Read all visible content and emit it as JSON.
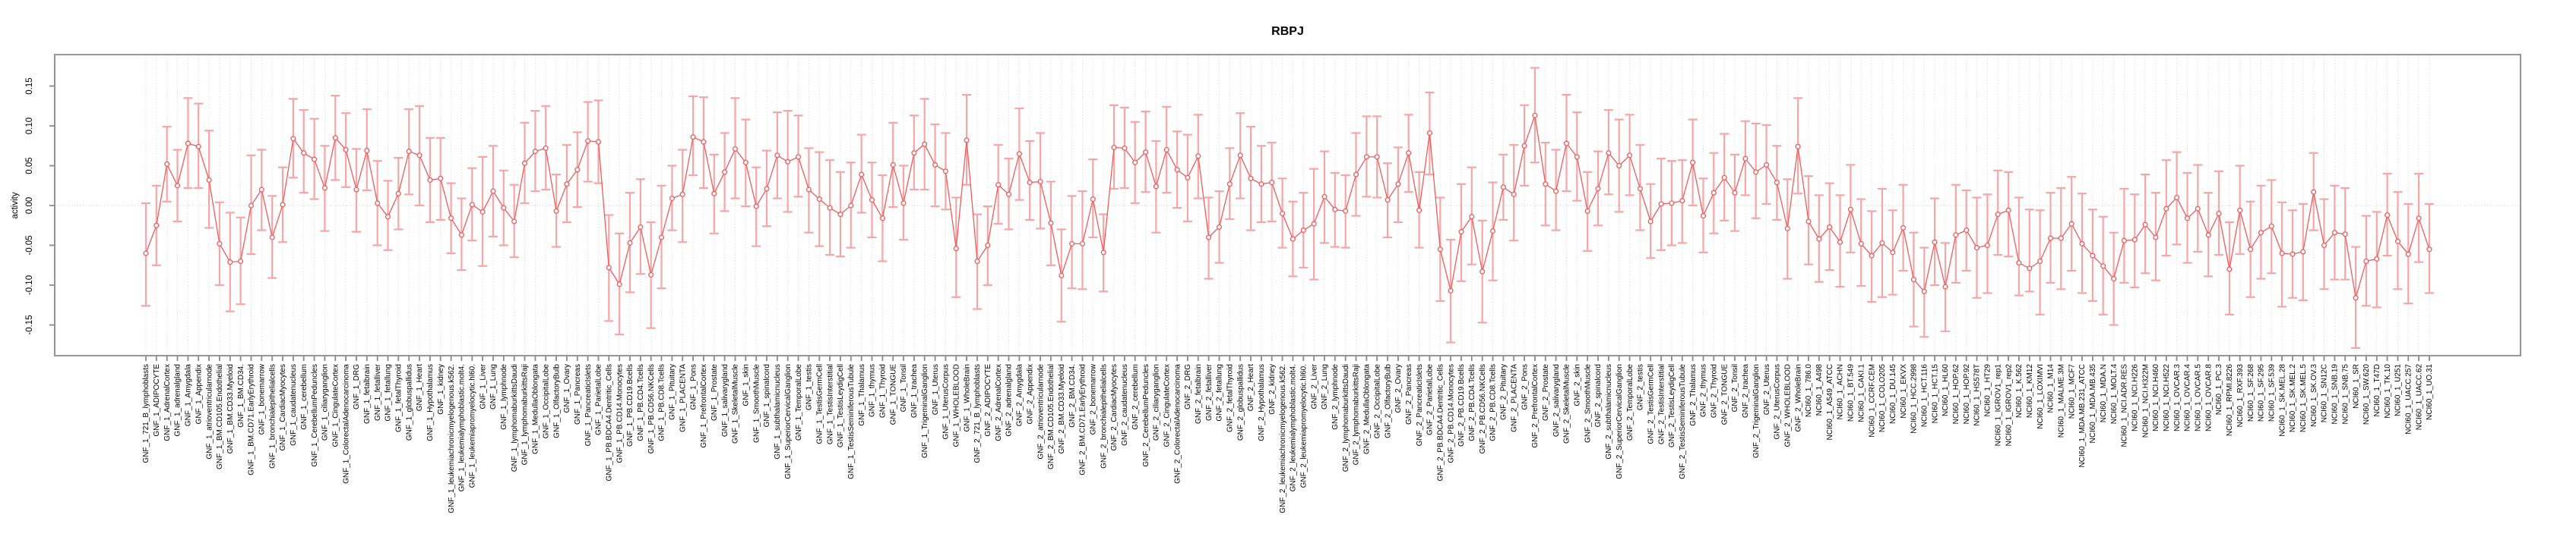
{
  "chart_data": {
    "type": "line",
    "title": "RBPJ",
    "ylabel": "activity",
    "xlabel": "",
    "legend": "none",
    "grid": "vertical dotted gridline per category; dotted horizontal line at 0",
    "ylim": [
      -0.19,
      0.19
    ],
    "yticks": {
      "labels": [
        "0.15",
        "0.10",
        "0.05",
        "0.00",
        "-0.05",
        "-0.10",
        "-0.15"
      ],
      "values": [
        0.15,
        0.1,
        0.05,
        0.0,
        -0.05,
        -0.1,
        -0.15
      ]
    },
    "marker": "open-circle with error bars (mean ± bounds)",
    "categories": [
      "GNF_1_721_B_lymphoblasts",
      "GNF_1_ADIPOCYTE",
      "GNF_1_AdrenalCortex",
      "GNF_1_adrenalgland",
      "GNF_1_Amygdala",
      "GNF_1_Appendix",
      "GNF_1_atrioventricularnode",
      "GNF_1_BM.CD105.Endothelial",
      "GNF_1_BM.CD33.Myeloid",
      "GNF_1_BM.CD34.",
      "GNF_1_BM.CD71.EarlyErythroid",
      "GNF_1_bonemarrow",
      "GNF_1_bronchialepithelialcells",
      "GNF_1_CardiacMyocytes",
      "GNF_1_caudatenucleus",
      "GNF_1_cerebellum",
      "GNF_1_CerebellumPeduncles",
      "GNF_1_ciliaryganglion",
      "GNF_1_CingulateCortex",
      "GNF_1_ColorectalAdenocarcinoma",
      "GNF_1_DRG",
      "GNF_1_fetalbrain",
      "GNF_1_fetalliver",
      "GNF_1_fetallung",
      "GNF_1_fetalThyroid",
      "GNF_1_globuspallidus",
      "GNF_1_Heart",
      "GNF_1_Hypothalamus",
      "GNF_1_kidney",
      "GNF_1_leukemiachronicmyelogenous.k562.",
      "GNF_1_leukemialymphoblastic.molt4.",
      "GNF_1_leukemiapromyelocytic.hl60.",
      "GNF_1_Liver",
      "GNF_1_Lung",
      "GNF_1_lymphnode",
      "GNF_1_lymphomaburkittsDaudi",
      "GNF_1_lymphomaburkittsRaji",
      "GNF_1_MedullaOblongata",
      "GNF_1_OccipitalLobe",
      "GNF_1_OlfactoryBulb",
      "GNF_1_Ovary",
      "GNF_1_Pancreas",
      "GNF_1_PancreaticIslets",
      "GNF_1_ParietalLobe",
      "GNF_1_PB.BDCA4.Dentritic_Cells",
      "GNF_1_PB.CD14.Monocytes",
      "GNF_1_PB.CD19.Bcells",
      "GNF_1_PB.CD4.Tcells",
      "GNF_1_PB.CD56.NKCells",
      "GNF_1_PB.CD8.Tcells",
      "GNF_1_Pituitary",
      "GNF_1_PLACENTA",
      "GNF_1_Pons",
      "GNF_1_PrefrontalCortex",
      "GNF_1_Prostate",
      "GNF_1_salivarygland",
      "GNF_1_SkeletalMuscle",
      "GNF_1_skin",
      "GNF_1_SmoothMuscle",
      "GNF_1_spinalcord",
      "GNF_1_subthalamicnucleus",
      "GNF_1_SuperiorCervicalGanglion",
      "GNF_1_TemporalLobe",
      "GNF_1_testis",
      "GNF_1_TestisGermCell",
      "GNF_1_TestisInterstitial",
      "GNF_1_TestisLeydigCell",
      "GNF_1_TestisSeminiferousTubule",
      "GNF_1_Thalamus",
      "GNF_1_thymus",
      "GNF_1_Thyroid",
      "GNF_1_TONGUE",
      "GNF_1_Tonsil",
      "GNF_1_trachea",
      "GNF_1_TrigeminalGanglion",
      "GNF_1_Uterus",
      "GNF_1_UterusCorpus",
      "GNF_1_WHOLEBLOOD",
      "GNF_1_WholeBrain",
      "GNF_2_721_B_lymphoblasts",
      "GNF_2_ADIPOCYTE",
      "GNF_2_AdrenalCortex",
      "GNF_2_adrenalgland",
      "GNF_2_Amygdala",
      "GNF_2_Appendix",
      "GNF_2_atrioventricularnode",
      "GNF_2_BM.CD105.Endothelial",
      "GNF_2_BM.CD33.Myeloid",
      "GNF_2_BM.CD34.",
      "GNF_2_BM.CD71.EarlyErythroid",
      "GNF_2_bonemarrow",
      "GNF_2_bronchialepithelialcells",
      "GNF_2_CardiacMyocytes",
      "GNF_2_caudatenucleus",
      "GNF_2_cerebellum",
      "GNF_2_CerebellumPeduncles",
      "GNF_2_ciliaryganglion",
      "GNF_2_CingulateCortex",
      "GNF_2_ColorectalAdenocarcinoma",
      "GNF_2_DRG",
      "GNF_2_fetalbrain",
      "GNF_2_fetalliver",
      "GNF_2_fetallung",
      "GNF_2_fetalThyroid",
      "GNF_2_globuspallidus",
      "GNF_2_Heart",
      "GNF_2_Hypothalamus",
      "GNF_2_kidney",
      "GNF_2_leukemiachronicmyelogenous.k562.",
      "GNF_2_leukemialymphoblastic.molt4.",
      "GNF_2_leukemiapromyelocytic.hl60.",
      "GNF_2_Liver",
      "GNF_2_Lung",
      "GNF_2_lymphnode",
      "GNF_2_lymphomaburkittsDaudi",
      "GNF_2_lymphomaburkittsRaji",
      "GNF_2_MedullaOblongata",
      "GNF_2_OccipitalLobe",
      "GNF_2_OlfactoryBulb",
      "GNF_2_Ovary",
      "GNF_2_Pancreas",
      "GNF_2_PancreaticIslets",
      "GNF_2_ParietalLobe",
      "GNF_2_PB.BDCA4.Dentritic_Cells",
      "GNF_2_PB.CD14.Monocytes",
      "GNF_2_PB.CD19.Bcells",
      "GNF_2_PB.CD4.Tcells",
      "GNF_2_PB.CD56.NKCells",
      "GNF_2_PB.CD8.Tcells",
      "GNF_2_Pituitary",
      "GNF_2_PLACENTA",
      "GNF_2_Pons",
      "GNF_2_PrefrontalCortex",
      "GNF_2_Prostate",
      "GNF_2_salivarygland",
      "GNF_2_SkeletalMuscle",
      "GNF_2_skin",
      "GNF_2_SmoothMuscle",
      "GNF_2_spinalcord",
      "GNF_2_subthalamicnucleus",
      "GNF_2_SuperiorCervicalGanglion",
      "GNF_2_TemporalLobe",
      "GNF_2_testis",
      "GNF_2_TestisGermCell",
      "GNF_2_TestisInterstitial",
      "GNF_2_TestisLeydigCell",
      "GNF_2_TestisSeminiferousTubule",
      "GNF_2_Thalamus",
      "GNF_2_thymus",
      "GNF_2_Thyroid",
      "GNF_2_TONGUE",
      "GNF_2_Tonsil",
      "GNF_2_trachea",
      "GNF_2_TrigeminalGanglion",
      "GNF_2_Uterus",
      "GNF_2_UterusCorpus",
      "GNF_2_WHOLEBLOOD",
      "GNF_2_WholeBrain",
      "NCI60_1_786.0",
      "NCI60_1_A498",
      "NCI60_1_A549_ATCC",
      "NCI60_1_ACHN",
      "NCI60_1_BT.549",
      "NCI60_1_CAKI.1",
      "NCI60_1_CCRF.CEM",
      "NCI60_1_COLO205",
      "NCI60_1_DU.145",
      "NCI60_1_EKVX",
      "NCI60_1_HCC.2998",
      "NCI60_1_HCT.116",
      "NCI60_1_HCT.15",
      "NCI60_1_HL60",
      "NCI60_1_HOP.62",
      "NCI60_1_HOP.92",
      "NCI60_1_HS578T",
      "NCI60_1_HT29",
      "NCI60_1_IGROV1_rep1",
      "NCI60_1_IGROV1_rep2",
      "NCI60_1_K.562",
      "NCI60_1_KM12",
      "NCI60_1_LOXIMVI",
      "NCI60_1_M14",
      "NCI60_1_MALME.3M",
      "NCI60_1_MCF7",
      "NCI60_1_MDA.MB.231_ATCC",
      "NCI60_1_MDA.MB.435",
      "NCI60_1_MDA.N",
      "NCI60_1_MOLT.4",
      "NCI60_1_NCI.ADR.RES",
      "NCI60_1_NCI.H226",
      "NCI60_1_NCI.H322M",
      "NCI60_1_NCI.H460",
      "NCI60_1_NCI.H522",
      "NCI60_1_OVCAR.3",
      "NCI60_1_OVCAR.4",
      "NCI60_1_OVCAR.5",
      "NCI60_1_OVCAR.8",
      "NCI60_1_PC.3",
      "NCI60_1_RPMI.8226",
      "NCI60_1_RXF.393",
      "NCI60_1_SF.268",
      "NCI60_1_SF.295",
      "NCI60_1_SF.539",
      "NCI60_1_SK.MEL.28",
      "NCI60_1_SK.MEL.2",
      "NCI60_1_SK.MEL.5",
      "NCI60_1_SK.OV.3",
      "NCI60_1_SN12C",
      "NCI60_1_SNB.19",
      "NCI60_1_SNB.75",
      "NCI60_1_SR",
      "NCI60_1_SW.620",
      "NCI60_1_T47D",
      "NCI60_1_TK.10",
      "NCI60_1_U251",
      "NCI60_1_UACC.257",
      "NCI60_1_UACC.62",
      "NCI60_1_UO.31"
    ],
    "values": [
      -0.06,
      -0.025,
      0.052,
      0.025,
      0.078,
      0.074,
      0.032,
      -0.048,
      -0.071,
      -0.07,
      0.0,
      0.02,
      -0.04,
      0.001,
      0.084,
      0.066,
      0.058,
      0.022,
      0.085,
      0.07,
      0.02,
      0.069,
      0.003,
      -0.014,
      0.015,
      0.068,
      0.063,
      0.032,
      0.034,
      -0.016,
      -0.037,
      0.001,
      -0.008,
      0.018,
      -0.003,
      -0.02,
      0.053,
      0.068,
      0.072,
      -0.007,
      0.027,
      0.045,
      0.081,
      0.08,
      -0.078,
      -0.099,
      -0.047,
      -0.027,
      -0.087,
      -0.04,
      0.009,
      0.014,
      0.086,
      0.08,
      0.015,
      0.042,
      0.071,
      0.054,
      -0.001,
      0.021,
      0.063,
      0.055,
      0.061,
      0.02,
      0.008,
      -0.003,
      -0.011,
      0.0,
      0.039,
      0.007,
      -0.016,
      0.051,
      0.003,
      0.066,
      0.077,
      0.051,
      0.043,
      -0.054,
      0.082,
      -0.07,
      -0.05,
      0.026,
      0.014,
      0.065,
      0.029,
      0.03,
      -0.022,
      -0.088,
      -0.048,
      -0.048,
      0.008,
      -0.059,
      0.073,
      0.072,
      0.054,
      0.067,
      0.024,
      0.07,
      0.045,
      0.035,
      0.062,
      -0.04,
      -0.027,
      0.027,
      0.063,
      0.034,
      0.027,
      0.029,
      -0.01,
      -0.042,
      -0.031,
      -0.023,
      0.011,
      -0.005,
      -0.007,
      0.039,
      0.061,
      0.061,
      0.007,
      0.027,
      0.066,
      -0.006,
      0.091,
      -0.055,
      -0.107,
      -0.033,
      -0.014,
      -0.083,
      -0.032,
      0.023,
      0.014,
      0.075,
      0.113,
      0.027,
      0.018,
      0.078,
      0.061,
      -0.007,
      0.021,
      0.066,
      0.05,
      0.063,
      0.021,
      -0.02,
      0.002,
      0.003,
      0.006,
      0.054,
      -0.013,
      0.016,
      0.035,
      0.016,
      0.059,
      0.042,
      0.051,
      0.029,
      -0.029,
      0.074,
      -0.02,
      -0.042,
      -0.027,
      -0.046,
      -0.005,
      -0.048,
      -0.063,
      -0.047,
      -0.059,
      -0.028,
      -0.093,
      -0.108,
      -0.046,
      -0.102,
      -0.037,
      -0.031,
      -0.053,
      -0.05,
      -0.011,
      -0.006,
      -0.072,
      -0.079,
      -0.07,
      -0.041,
      -0.041,
      -0.023,
      -0.048,
      -0.063,
      -0.076,
      -0.092,
      -0.044,
      -0.043,
      -0.024,
      -0.04,
      -0.004,
      0.01,
      -0.016,
      -0.004,
      -0.037,
      -0.01,
      -0.08,
      -0.006,
      -0.055,
      -0.034,
      -0.026,
      -0.06,
      -0.061,
      -0.058,
      0.017,
      -0.05,
      -0.034,
      -0.036,
      -0.116,
      -0.07,
      -0.067,
      -0.012,
      -0.045,
      -0.061,
      -0.016,
      -0.055
    ],
    "err_low": [
      -0.126,
      -0.075,
      0.005,
      -0.02,
      0.022,
      0.022,
      -0.028,
      -0.1,
      -0.133,
      -0.124,
      -0.061,
      -0.031,
      -0.091,
      -0.046,
      0.035,
      0.016,
      0.008,
      -0.032,
      0.032,
      0.023,
      -0.033,
      0.019,
      -0.05,
      -0.056,
      -0.03,
      0.014,
      0.0,
      -0.021,
      -0.018,
      -0.06,
      -0.081,
      -0.044,
      -0.076,
      -0.039,
      -0.05,
      -0.065,
      0.003,
      0.018,
      0.02,
      -0.052,
      -0.021,
      -0.002,
      0.03,
      0.028,
      -0.145,
      -0.162,
      -0.109,
      -0.086,
      -0.154,
      -0.104,
      -0.031,
      -0.046,
      0.038,
      0.022,
      -0.035,
      -0.007,
      0.009,
      -0.001,
      -0.051,
      -0.026,
      0.009,
      -0.008,
      0.011,
      -0.034,
      -0.051,
      -0.062,
      -0.064,
      -0.053,
      -0.009,
      -0.04,
      -0.07,
      -0.002,
      -0.043,
      0.02,
      0.02,
      -0.001,
      -0.005,
      -0.115,
      0.026,
      -0.13,
      -0.1,
      -0.023,
      -0.03,
      0.007,
      -0.018,
      -0.029,
      -0.075,
      -0.146,
      -0.104,
      -0.105,
      -0.04,
      -0.108,
      0.021,
      0.022,
      0.003,
      0.017,
      -0.034,
      0.016,
      -0.003,
      -0.02,
      0.009,
      -0.092,
      -0.072,
      -0.017,
      0.009,
      -0.031,
      -0.021,
      -0.02,
      -0.053,
      -0.089,
      -0.078,
      -0.093,
      -0.047,
      -0.052,
      -0.053,
      -0.013,
      0.011,
      0.01,
      -0.04,
      -0.021,
      0.017,
      -0.053,
      0.039,
      -0.12,
      -0.172,
      -0.095,
      -0.074,
      -0.147,
      -0.094,
      -0.018,
      -0.044,
      0.025,
      0.054,
      -0.025,
      -0.031,
      0.018,
      0.006,
      -0.057,
      -0.025,
      0.014,
      -0.008,
      0.013,
      -0.031,
      -0.066,
      -0.056,
      -0.05,
      -0.047,
      0.0,
      -0.059,
      -0.035,
      -0.019,
      -0.032,
      0.013,
      -0.016,
      0.002,
      -0.018,
      -0.092,
      0.015,
      -0.074,
      -0.096,
      -0.081,
      -0.102,
      -0.059,
      -0.101,
      -0.121,
      -0.115,
      -0.112,
      -0.082,
      -0.152,
      -0.165,
      -0.1,
      -0.158,
      -0.097,
      -0.082,
      -0.116,
      -0.11,
      -0.062,
      -0.064,
      -0.113,
      -0.108,
      -0.137,
      -0.097,
      -0.105,
      -0.082,
      -0.11,
      -0.12,
      -0.137,
      -0.15,
      -0.097,
      -0.103,
      -0.085,
      -0.094,
      -0.063,
      -0.049,
      -0.072,
      -0.058,
      -0.089,
      -0.062,
      -0.137,
      -0.061,
      -0.115,
      -0.092,
      -0.085,
      -0.127,
      -0.116,
      -0.119,
      -0.031,
      -0.105,
      -0.093,
      -0.093,
      -0.179,
      -0.126,
      -0.128,
      -0.063,
      -0.105,
      -0.123,
      -0.071,
      -0.11
    ],
    "err_high": [
      0.003,
      0.025,
      0.099,
      0.07,
      0.135,
      0.128,
      0.094,
      0.004,
      -0.009,
      -0.015,
      0.063,
      0.07,
      0.012,
      0.048,
      0.134,
      0.12,
      0.109,
      0.075,
      0.138,
      0.116,
      0.071,
      0.121,
      0.056,
      0.031,
      0.06,
      0.121,
      0.125,
      0.085,
      0.085,
      0.028,
      0.009,
      0.047,
      0.061,
      0.075,
      0.044,
      0.026,
      0.104,
      0.119,
      0.125,
      0.039,
      0.076,
      0.092,
      0.13,
      0.132,
      -0.012,
      -0.035,
      0.016,
      0.033,
      -0.021,
      0.025,
      0.05,
      0.07,
      0.137,
      0.136,
      0.064,
      0.091,
      0.135,
      0.108,
      0.048,
      0.069,
      0.117,
      0.119,
      0.113,
      0.072,
      0.067,
      0.057,
      0.042,
      0.054,
      0.089,
      0.054,
      0.038,
      0.104,
      0.05,
      0.113,
      0.134,
      0.102,
      0.091,
      0.01,
      0.139,
      -0.011,
      -0.001,
      0.076,
      0.059,
      0.122,
      0.081,
      0.091,
      0.03,
      -0.03,
      0.012,
      0.018,
      0.058,
      -0.011,
      0.126,
      0.123,
      0.105,
      0.118,
      0.081,
      0.124,
      0.093,
      0.089,
      0.114,
      0.01,
      0.018,
      0.072,
      0.116,
      0.099,
      0.075,
      0.079,
      0.034,
      0.005,
      0.016,
      0.046,
      0.068,
      0.041,
      0.038,
      0.091,
      0.112,
      0.112,
      0.053,
      0.073,
      0.114,
      0.042,
      0.142,
      0.01,
      -0.043,
      0.027,
      0.048,
      -0.019,
      0.029,
      0.064,
      0.076,
      0.126,
      0.173,
      0.079,
      0.07,
      0.139,
      0.117,
      0.042,
      0.068,
      0.12,
      0.108,
      0.114,
      0.076,
      0.027,
      0.059,
      0.056,
      0.057,
      0.108,
      0.034,
      0.066,
      0.09,
      0.064,
      0.106,
      0.103,
      0.101,
      0.075,
      0.033,
      0.135,
      0.037,
      0.013,
      0.028,
      0.013,
      0.051,
      0.008,
      -0.007,
      0.021,
      -0.006,
      0.026,
      -0.034,
      -0.053,
      0.009,
      -0.047,
      0.026,
      0.019,
      0.01,
      0.014,
      0.044,
      0.042,
      0.01,
      -0.005,
      -0.006,
      0.016,
      0.022,
      0.036,
      0.015,
      -0.005,
      -0.014,
      -0.034,
      0.021,
      0.014,
      0.039,
      0.016,
      0.057,
      0.067,
      0.041,
      0.051,
      0.016,
      0.043,
      -0.021,
      0.05,
      0.005,
      0.025,
      0.032,
      0.004,
      -0.006,
      0.002,
      0.066,
      0.008,
      0.025,
      0.022,
      -0.052,
      -0.013,
      -0.008,
      0.04,
      0.017,
      0.002,
      0.04,
      0.002
    ],
    "colors": {
      "series": "#ee5c5c",
      "error_bar": "#f6a6a6",
      "gridline": "#dadada",
      "zero_line": "#c9c9c9",
      "frame": "#8a8a8a",
      "text": "#000000",
      "background": "#ffffff"
    }
  }
}
